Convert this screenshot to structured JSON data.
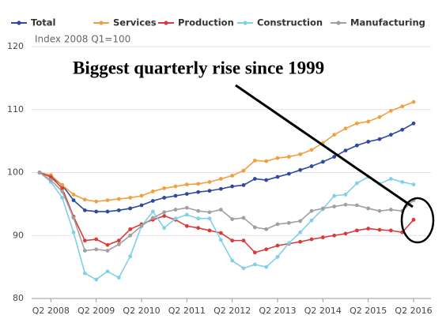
{
  "chart_data": {
    "type": "line",
    "subtitle": "Index 2008 Q1=100",
    "annotation": "Biggest quarterly rise since 1999",
    "categories": [
      null,
      "Q2 2008",
      null,
      null,
      null,
      "Q2 2009",
      null,
      null,
      null,
      "Q2 2010",
      null,
      null,
      null,
      "Q2 2011",
      null,
      null,
      null,
      "Q2 2012",
      null,
      null,
      null,
      "Q2 2013",
      null,
      null,
      null,
      "Q2 2014",
      null,
      null,
      null,
      "Q2 2015",
      null,
      null,
      null,
      "Q2 2016"
    ],
    "series": [
      {
        "name": "Total",
        "color": "#2d4a9c",
        "values": [
          100,
          99.4,
          98,
          95.6,
          94,
          93.8,
          93.8,
          94,
          94.3,
          94.8,
          95.5,
          96,
          96.3,
          96.6,
          96.9,
          97.1,
          97.4,
          97.8,
          98,
          99,
          98.8,
          99.3,
          99.8,
          100.4,
          101,
          101.7,
          102.5,
          103.5,
          104.3,
          104.9,
          105.3,
          106,
          106.8,
          107.8
        ]
      },
      {
        "name": "Services",
        "color": "#f0a040",
        "values": [
          100,
          99.6,
          98,
          96.5,
          95.7,
          95.4,
          95.6,
          95.8,
          96,
          96.3,
          97,
          97.5,
          97.8,
          98.1,
          98.2,
          98.5,
          99,
          99.5,
          100.3,
          101.9,
          101.8,
          102.3,
          102.5,
          102.9,
          103.6,
          104.7,
          106,
          107,
          107.8,
          108.1,
          108.8,
          109.8,
          110.5,
          111.2
        ]
      },
      {
        "name": "Production",
        "color": "#d93b3b",
        "values": [
          100,
          99.3,
          97.5,
          93,
          89.2,
          89.4,
          88.5,
          89.2,
          91,
          91.8,
          92.5,
          93.1,
          92.5,
          91.5,
          91.2,
          90.8,
          90.4,
          89.2,
          89.2,
          87.3,
          87.8,
          88.4,
          88.7,
          89,
          89.4,
          89.7,
          90,
          90.3,
          90.8,
          91.1,
          90.9,
          90.8,
          90.5,
          92.5
        ]
      },
      {
        "name": "Construction",
        "color": "#80d0ea",
        "values": [
          100,
          98.5,
          96,
          90.5,
          84,
          83,
          84.3,
          83.3,
          86.7,
          91.5,
          93.8,
          91.2,
          92.7,
          93.3,
          92.7,
          92.7,
          89.3,
          86,
          84.8,
          85.4,
          85,
          86.6,
          88.8,
          90.5,
          92.4,
          94.2,
          96.3,
          96.5,
          98.3,
          99.3,
          98.2,
          99,
          98.5,
          98.1
        ]
      },
      {
        "name": "Manufacturing",
        "color": "#a0a0a0",
        "values": [
          100,
          98.8,
          97,
          92.8,
          87.6,
          87.8,
          87.6,
          88.6,
          90,
          91.5,
          92.8,
          93.7,
          94.1,
          94.4,
          93.9,
          93.7,
          94.1,
          92.6,
          92.8,
          91.3,
          91,
          91.8,
          92,
          92.3,
          93.9,
          94.3,
          94.6,
          94.9,
          94.8,
          94.3,
          93.9,
          94.1,
          93.9,
          95.6
        ]
      }
    ],
    "ylim": [
      80,
      120
    ],
    "yticks": [
      80,
      90,
      100,
      110,
      120
    ],
    "grid": true,
    "legend": "top"
  }
}
